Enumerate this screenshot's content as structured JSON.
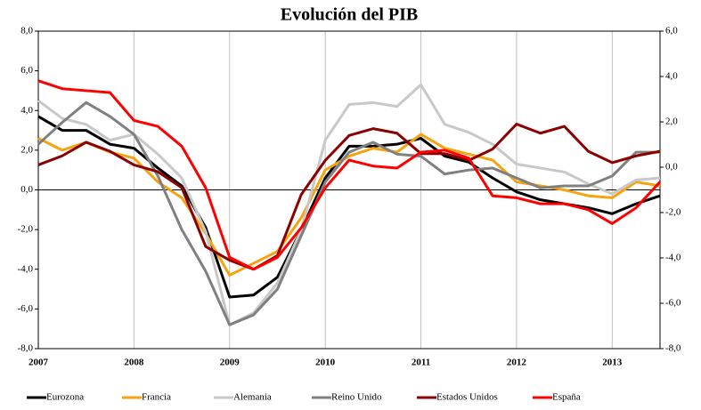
{
  "chart_data": {
    "type": "line",
    "title": "Evolución del PIB",
    "x": [
      2007,
      2007.25,
      2007.5,
      2007.75,
      2008,
      2008.25,
      2008.5,
      2008.75,
      2009,
      2009.25,
      2009.5,
      2009.75,
      2010,
      2010.25,
      2010.5,
      2010.75,
      2011,
      2011.25,
      2011.5,
      2011.75,
      2012,
      2012.25,
      2012.5,
      2012.75,
      2013,
      2013.25,
      2013.5
    ],
    "xlim": [
      2007,
      2013.5
    ],
    "xticks": [
      2007,
      2008,
      2009,
      2010,
      2011,
      2012,
      2013
    ],
    "ylim": [
      -8,
      8
    ],
    "yticks": [
      {
        "value": 8,
        "label": "8,0"
      },
      {
        "value": 6,
        "label": "6,0"
      },
      {
        "value": 4,
        "label": "4,0"
      },
      {
        "value": 2,
        "label": "2,0"
      },
      {
        "value": 0,
        "label": "0,0"
      },
      {
        "value": -2,
        "label": "-2,0"
      },
      {
        "value": -4,
        "label": "-4,0"
      },
      {
        "value": -6,
        "label": "-6,0"
      },
      {
        "value": -8,
        "label": "-8,0"
      }
    ],
    "y2lim": [
      -8,
      6
    ],
    "y2ticks": [
      {
        "value": 6,
        "label": "6,0"
      },
      {
        "value": 4,
        "label": "4,0"
      },
      {
        "value": 2,
        "label": "2,0"
      },
      {
        "value": 0,
        "label": "0,0"
      },
      {
        "value": -2,
        "label": "-2,0"
      },
      {
        "value": -4,
        "label": "-4,0"
      },
      {
        "value": -6,
        "label": "-6,0"
      },
      {
        "value": -8,
        "label": "-8,0"
      }
    ],
    "grid": "x",
    "series": [
      {
        "name": "Eurozona",
        "color": "#000000",
        "values": [
          3.7,
          3.0,
          3.0,
          2.3,
          2.1,
          1.1,
          0.2,
          -1.9,
          -5.4,
          -5.3,
          -4.4,
          -2.0,
          0.6,
          2.2,
          2.2,
          2.3,
          2.6,
          1.7,
          1.4,
          0.6,
          -0.1,
          -0.5,
          -0.7,
          -0.9,
          -1.2,
          -0.7,
          -0.3
        ]
      },
      {
        "name": "Francia",
        "color": "#f5a30f",
        "values": [
          2.6,
          2.0,
          2.4,
          1.9,
          1.6,
          0.4,
          -0.4,
          -2.2,
          -4.3,
          -3.7,
          -3.1,
          -1.4,
          1.0,
          1.7,
          2.1,
          1.9,
          2.8,
          2.1,
          1.8,
          1.5,
          0.4,
          0.2,
          0.0,
          -0.3,
          -0.4,
          0.4,
          0.2
        ]
      },
      {
        "name": "Alemania",
        "color": "#c8c8c8",
        "values": [
          4.5,
          3.6,
          3.3,
          2.5,
          2.8,
          1.8,
          0.6,
          -2.1,
          -6.8,
          -6.2,
          -4.7,
          -2.0,
          2.5,
          4.3,
          4.4,
          4.2,
          5.3,
          3.3,
          2.9,
          2.3,
          1.3,
          1.1,
          0.9,
          0.3,
          -0.2,
          0.5,
          0.6
        ]
      },
      {
        "name": "Reino Unido",
        "color": "#808080",
        "values": [
          2.3,
          3.4,
          4.4,
          3.7,
          2.8,
          0.7,
          -2.0,
          -4.1,
          -6.8,
          -6.3,
          -5.0,
          -2.3,
          0.4,
          1.9,
          2.4,
          1.8,
          1.7,
          0.8,
          1.0,
          1.1,
          0.6,
          0.1,
          0.2,
          0.2,
          0.7,
          1.9,
          1.9
        ]
      },
      {
        "name": "Estados Unidos",
        "color": "#8b0000",
        "axis": "y2",
        "values": [
          0.1,
          0.5,
          1.1,
          0.7,
          0.1,
          -0.2,
          -0.9,
          -3.5,
          -4.1,
          -4.5,
          -3.9,
          -1.2,
          0.3,
          1.4,
          1.7,
          1.5,
          0.6,
          0.6,
          0.3,
          0.8,
          1.9,
          1.5,
          1.8,
          0.7,
          0.2,
          0.5,
          0.7
        ]
      },
      {
        "name": "España",
        "color": "#ff0000",
        "values": [
          5.5,
          5.1,
          5.0,
          4.9,
          3.5,
          3.2,
          2.2,
          0.1,
          -3.4,
          -4.0,
          -3.4,
          -1.9,
          0.1,
          1.5,
          1.2,
          1.1,
          1.9,
          2.0,
          1.6,
          -0.3,
          -0.4,
          -0.7,
          -0.7,
          -1.0,
          -1.7,
          -0.9,
          0.4
        ]
      }
    ]
  }
}
